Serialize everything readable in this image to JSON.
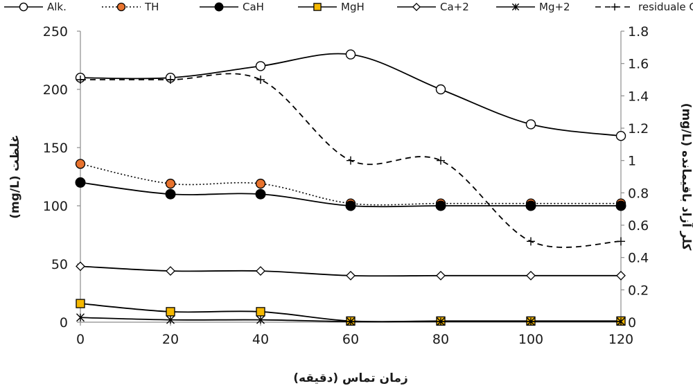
{
  "chart_data": {
    "type": "line",
    "title": "",
    "xlabel": "زمان تماس (دقیقه)",
    "ylabel": "غلظت (mg/L)",
    "y2label": "کلر آزاد باقیمانده (mg/L)",
    "x": [
      0,
      20,
      40,
      60,
      80,
      100,
      120
    ],
    "xticks": [
      "0",
      "20",
      "40",
      "60",
      "80",
      "100",
      "120"
    ],
    "ylim": [
      0,
      250
    ],
    "yticks": [
      "0",
      "50",
      "100",
      "150",
      "200",
      "250"
    ],
    "y2lim": [
      0,
      1.8
    ],
    "y2ticks": [
      "0",
      "0.2",
      "0.4",
      "0.6",
      "0.8",
      "1",
      "1.2",
      "1.4",
      "1.6",
      "1.8"
    ],
    "grid": false,
    "legend_position": "top",
    "series": [
      {
        "name": "Alk.",
        "axis": "left",
        "values": [
          210,
          210,
          220,
          230,
          200,
          170,
          160
        ],
        "marker": "circle-open",
        "line": "solid",
        "color": "#000000"
      },
      {
        "name": "TH",
        "axis": "left",
        "values": [
          136,
          119,
          119,
          102,
          102,
          102,
          102
        ],
        "marker": "circle-orange",
        "line": "dotted",
        "color": "#000000",
        "marker_color": "#e8732e"
      },
      {
        "name": "CaH",
        "axis": "left",
        "values": [
          120,
          110,
          110,
          100,
          100,
          100,
          100
        ],
        "marker": "circle-filled",
        "line": "solid",
        "color": "#000000"
      },
      {
        "name": "MgH",
        "axis": "left",
        "values": [
          16,
          9,
          9,
          1,
          1,
          1,
          1
        ],
        "marker": "square-yellow",
        "line": "solid",
        "color": "#000000",
        "marker_color": "#f5b800"
      },
      {
        "name": "Ca+2",
        "axis": "left",
        "values": [
          48,
          44,
          44,
          40,
          40,
          40,
          40
        ],
        "marker": "diamond-open",
        "line": "solid",
        "color": "#000000"
      },
      {
        "name": "Mg+2",
        "axis": "left",
        "values": [
          4,
          2,
          2,
          0.5,
          0.5,
          0.5,
          0.5
        ],
        "marker": "asterisk",
        "line": "solid",
        "color": "#000000"
      },
      {
        "name": "residuale Cl",
        "axis": "right",
        "values": [
          1.5,
          1.5,
          1.5,
          1.0,
          1.0,
          0.5,
          0.5
        ],
        "marker": "plus",
        "line": "dashed",
        "color": "#000000"
      }
    ]
  }
}
